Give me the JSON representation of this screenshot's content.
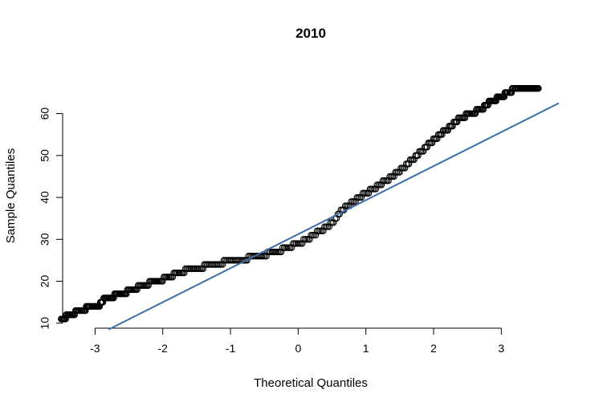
{
  "chart_data": {
    "type": "scatter",
    "title": "2010",
    "xlabel": "Theoretical Quantiles",
    "ylabel": "Sample Quantiles",
    "xlim": [
      -3.55,
      3.85
    ],
    "ylim": [
      9,
      67
    ],
    "xticks": [
      -3,
      -2,
      -1,
      0,
      1,
      2,
      3
    ],
    "yticks": [
      10,
      20,
      30,
      40,
      50,
      60
    ],
    "grid": false,
    "legend": "none",
    "point_style": "open-circle",
    "point_color": "#000000",
    "reference_line": {
      "color": "#3a6fa3",
      "from": [
        -2.8,
        8.5
      ],
      "to": [
        3.85,
        62.5
      ]
    },
    "sample_profile": [
      [
        -3.5,
        11
      ],
      [
        -3.22,
        13
      ],
      [
        -3.05,
        14
      ],
      [
        -2.95,
        14
      ],
      [
        -2.85,
        16
      ],
      [
        -2.6,
        17
      ],
      [
        -2.45,
        18
      ],
      [
        -2.3,
        19
      ],
      [
        -2.1,
        20
      ],
      [
        -1.9,
        21
      ],
      [
        -1.8,
        22
      ],
      [
        -1.55,
        23
      ],
      [
        -1.25,
        24
      ],
      [
        -0.95,
        25
      ],
      [
        -0.55,
        26
      ],
      [
        -0.35,
        27
      ],
      [
        -0.15,
        28
      ],
      [
        0,
        29
      ],
      [
        0.15,
        30
      ],
      [
        0.3,
        32
      ],
      [
        0.45,
        33
      ],
      [
        0.55,
        35
      ],
      [
        0.65,
        37
      ],
      [
        0.8,
        39
      ],
      [
        1.0,
        41
      ],
      [
        1.3,
        44
      ],
      [
        1.55,
        47
      ],
      [
        1.75,
        50
      ],
      [
        1.95,
        53
      ],
      [
        2.1,
        55
      ],
      [
        2.25,
        57
      ],
      [
        2.4,
        59
      ],
      [
        2.55,
        60
      ],
      [
        2.7,
        61
      ],
      [
        2.85,
        63
      ],
      [
        3.0,
        64
      ],
      [
        3.1,
        65
      ],
      [
        3.22,
        66
      ],
      [
        3.55,
        66
      ]
    ],
    "n_points": 500
  }
}
